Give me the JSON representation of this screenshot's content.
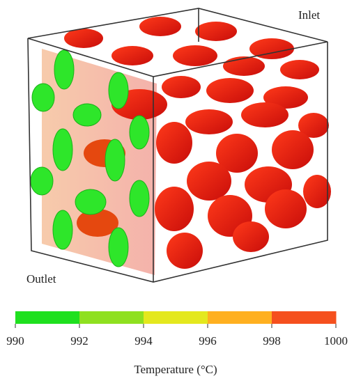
{
  "labels": {
    "inlet": "Inlet",
    "outlet": "Outlet"
  },
  "colorbar": {
    "title": "Temperature (°C)",
    "ticks": [
      990,
      992,
      994,
      996,
      998,
      1000
    ],
    "colors": [
      "#1fe01f",
      "#8fe020",
      "#e4e81e",
      "#ffb020",
      "#f5501e"
    ]
  }
}
